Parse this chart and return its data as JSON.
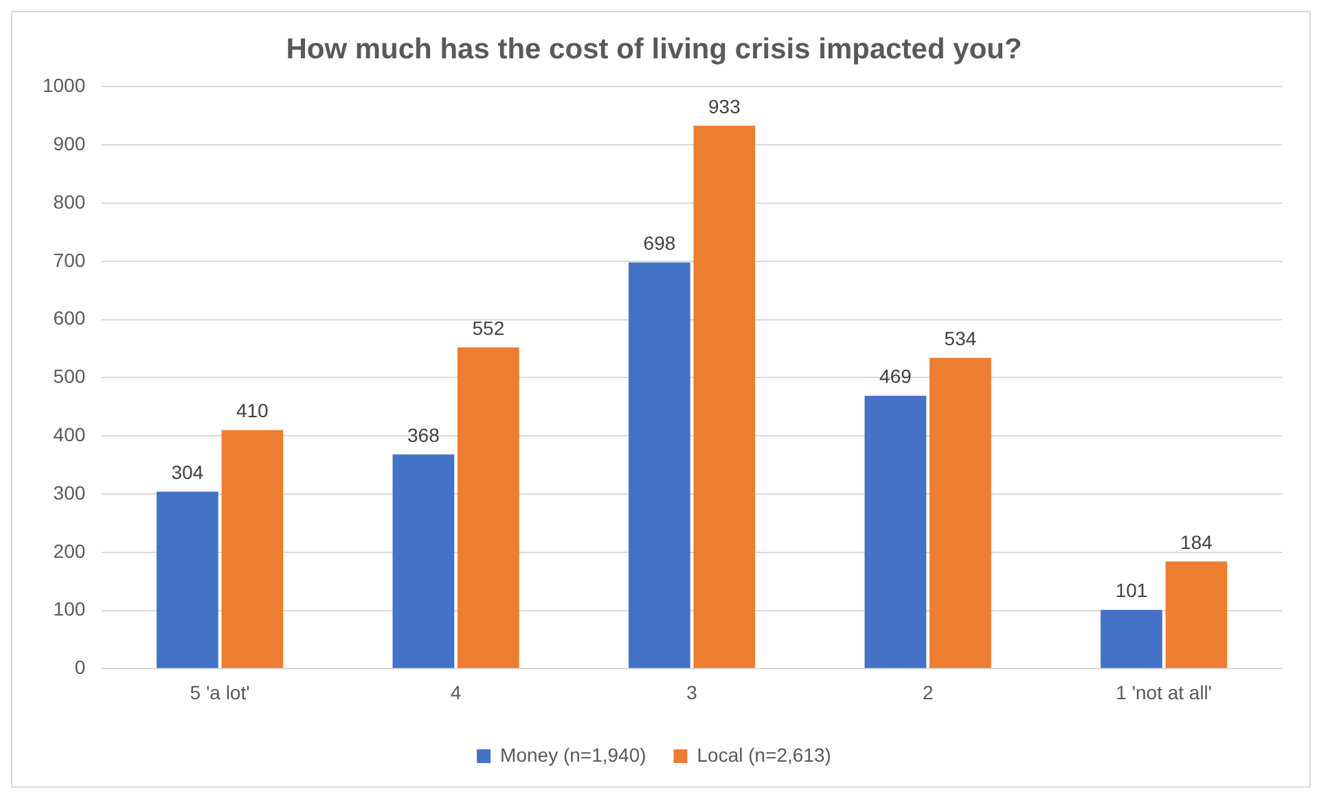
{
  "chart_data": {
    "type": "bar",
    "title": "How much has the cost of living crisis impacted you?",
    "categories": [
      "5 'a lot'",
      "4",
      "3",
      "2",
      "1 'not at all'"
    ],
    "series": [
      {
        "name": "Money (n=1,940)",
        "color": "#4472c4",
        "values": [
          304,
          368,
          698,
          469,
          101
        ]
      },
      {
        "name": "Local (n=2,613)",
        "color": "#ed7d31",
        "values": [
          410,
          552,
          933,
          534,
          184
        ]
      }
    ],
    "ylim": [
      0,
      1000
    ],
    "yticks": [
      0,
      100,
      200,
      300,
      400,
      500,
      600,
      700,
      800,
      900,
      1000
    ],
    "grid": "y",
    "legend": "bottom",
    "data_labels": true
  }
}
